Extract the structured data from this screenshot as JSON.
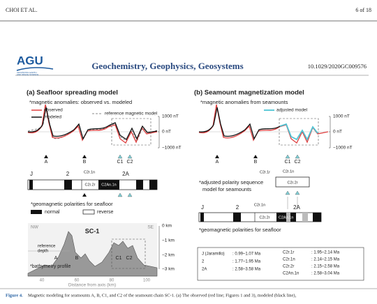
{
  "header": {
    "author": "CHOI ET AL.",
    "page": "6 of 18"
  },
  "journal": {
    "logo": "AGU",
    "logo_tagline": [
      "ADVANCING EARTH",
      "AND SPACE SCIENCE"
    ],
    "title": "Geochemistry, Geophysics, Geosystems",
    "doi": "10.1029/2020GC009576"
  },
  "figure": {
    "panel_a": {
      "title": "(a) Seafloor spreading model",
      "anomaly_note": "*magnetic anomalies: observed vs. modeled",
      "legend": [
        "observed",
        "modeled",
        "reference magnetic model"
      ],
      "axis_labels": [
        "1000 nT",
        "0 nT",
        "−1000 nT"
      ],
      "markers": [
        "A",
        "B",
        "C1",
        "C2"
      ],
      "polarity_labels": [
        "J",
        "2",
        "C2r.1n",
        "2A",
        "C2r.2r",
        "C2An.1n"
      ],
      "polarity_note": "*geomagnetic polarities for seafloor",
      "polarity_legend": [
        "normal",
        "reverse"
      ],
      "bathymetry": {
        "directions": [
          "NW",
          "SE"
        ],
        "chain": "SC-1",
        "depth_labels": [
          "0 km",
          "−1 km",
          "−2 km",
          "−3 km"
        ],
        "reference": [
          "reference",
          "depth"
        ],
        "markers": [
          "A",
          "B",
          "C1",
          "C2"
        ],
        "note": "*bathymetry profile",
        "distance_ticks": [
          "40",
          "60",
          "80",
          "100"
        ],
        "distance_label": "Distance from axis (km)"
      }
    },
    "panel_b": {
      "title": "(b) Seamount magnetization model",
      "anomaly_note": "*magnetic anomalies from seamounts",
      "legend": [
        "adjusted model"
      ],
      "axis_labels": [
        "1000 nT",
        "0 nT",
        "−1000 nT"
      ],
      "markers": [
        "A",
        "B",
        "C1",
        "C2"
      ],
      "adjusted_labels": [
        "C2r.1r",
        "C2r.1n",
        "C2r.2r"
      ],
      "adjusted_note": [
        "*adjusted polarity sequence",
        "model for seamounts"
      ],
      "polarity_labels": [
        "J",
        "2",
        "C2r.1n",
        "2A",
        "C2r.2r",
        "C2An.1n"
      ],
      "polarity_note": "*geomagnetic polarities for seafloor"
    },
    "ages": {
      "left": [
        [
          "J (Jaramillo)",
          ": 0.99–1.07 Ma"
        ],
        [
          "2",
          ": 1.77–1.95 Ma"
        ],
        [
          "2A",
          ": 2.58–3.58 Ma"
        ]
      ],
      "right": [
        [
          "C2r.1r",
          ": 1.95–2.14 Ma"
        ],
        [
          "C2r.1n",
          ": 2.14–2.15 Ma"
        ],
        [
          "C2r.2r",
          ": 2.15–2.58 Ma"
        ],
        [
          "C2An.1n",
          ": 2.58–3.04 Ma"
        ]
      ]
    }
  },
  "caption": {
    "label": "Figure 4.",
    "text": "Magnetic modeling for seamounts A, B, C1, and C2 of the seamount chain SC-1. (a) The observed (red line; Figures 1 and 3), modeled (black line),"
  }
}
